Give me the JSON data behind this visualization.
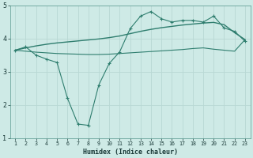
{
  "xlabel": "Humidex (Indice chaleur)",
  "color": "#2e7d6e",
  "bg_color": "#ceeae6",
  "grid_color": "#b8d8d4",
  "xlim": [
    0.5,
    23.5
  ],
  "ylim": [
    1,
    5
  ],
  "yticks": [
    1,
    2,
    3,
    4,
    5
  ],
  "xticks": [
    1,
    2,
    3,
    4,
    5,
    6,
    7,
    8,
    9,
    10,
    11,
    12,
    13,
    14,
    15,
    16,
    17,
    18,
    19,
    20,
    21,
    22,
    23
  ],
  "line1_x": [
    1,
    2,
    3,
    4,
    5,
    6,
    7,
    8,
    9,
    10,
    11,
    12,
    13,
    14,
    15,
    16,
    17,
    18,
    19,
    20,
    21,
    22,
    23
  ],
  "line1_y": [
    3.65,
    3.75,
    3.5,
    3.38,
    3.28,
    2.2,
    1.42,
    1.38,
    2.6,
    3.25,
    3.6,
    4.3,
    4.68,
    4.82,
    4.6,
    4.5,
    4.55,
    4.55,
    4.5,
    4.68,
    4.32,
    4.22,
    3.92
  ],
  "line2_x": [
    1,
    2,
    3,
    4,
    5,
    6,
    7,
    8,
    9,
    10,
    11,
    12,
    13,
    14,
    15,
    16,
    17,
    18,
    19,
    20,
    21,
    22,
    23
  ],
  "line2_y": [
    3.65,
    3.72,
    3.78,
    3.83,
    3.87,
    3.9,
    3.93,
    3.96,
    3.99,
    4.03,
    4.08,
    4.15,
    4.22,
    4.28,
    4.33,
    4.37,
    4.41,
    4.44,
    4.47,
    4.49,
    4.42,
    4.18,
    3.97
  ],
  "line3_x": [
    1,
    2,
    3,
    4,
    5,
    6,
    7,
    8,
    9,
    10,
    11,
    12,
    13,
    14,
    15,
    16,
    17,
    18,
    19,
    20,
    21,
    22,
    23
  ],
  "line3_y": [
    3.65,
    3.62,
    3.59,
    3.57,
    3.55,
    3.54,
    3.53,
    3.52,
    3.52,
    3.53,
    3.55,
    3.57,
    3.59,
    3.61,
    3.63,
    3.65,
    3.67,
    3.7,
    3.72,
    3.68,
    3.65,
    3.62,
    3.97
  ]
}
